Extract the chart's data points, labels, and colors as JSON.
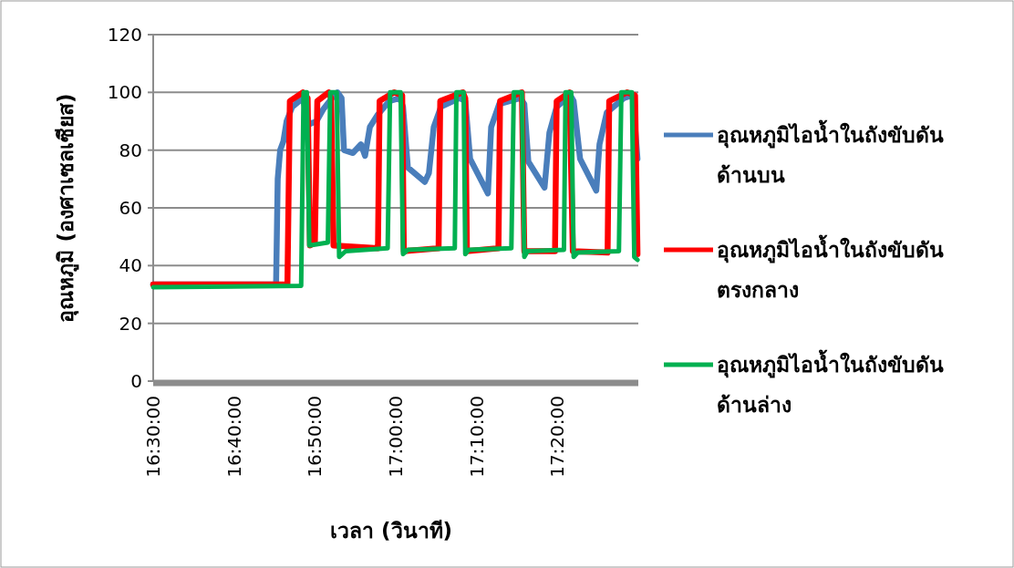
{
  "chart_data": {
    "type": "line",
    "xlabel": "เวลา (วินาที)",
    "ylabel": "อุณหภูมิ (องศาเซลเซียส)",
    "xlim": [
      16.5,
      17.5
    ],
    "ylim": [
      0,
      120
    ],
    "xticks": [
      {
        "value": 16.5,
        "label": "16:30:00"
      },
      {
        "value": 16.6667,
        "label": "16:40:00"
      },
      {
        "value": 16.8333,
        "label": "16:50:00"
      },
      {
        "value": 17,
        "label": "17:00:00"
      },
      {
        "value": 17.1667,
        "label": "17:10:00"
      },
      {
        "value": 17.3333,
        "label": "17:20:00"
      }
    ],
    "yticks": [
      0,
      20,
      40,
      60,
      80,
      100,
      120
    ],
    "grid": "y",
    "legend": "right",
    "marker": "none",
    "line_style": "solid",
    "series": [
      {
        "name": "อุณหภูมิไอน้ำในถังขับดันด้านบน",
        "color": "#4a7ebb",
        "x": [
          16.5,
          16.7533,
          16.7567,
          16.7617,
          16.7683,
          16.775,
          16.7867,
          16.8083,
          16.8167,
          16.8217,
          16.8367,
          16.85,
          16.8683,
          16.88,
          16.8883,
          16.8933,
          16.9117,
          16.9283,
          16.9367,
          16.9467,
          16.9617,
          16.9867,
          17.0083,
          17.015,
          17.025,
          17.06,
          17.0683,
          17.0783,
          17.0933,
          17.1317,
          17.1433,
          17.1533,
          17.19,
          17.1967,
          17.2133,
          17.2567,
          17.265,
          17.2733,
          17.3067,
          17.3167,
          17.3317,
          17.36,
          17.3667,
          17.38,
          17.4133,
          17.42,
          17.435,
          17.47,
          17.4883,
          17.4983
        ],
        "values": [
          33.5,
          33.5,
          70,
          80,
          83,
          90,
          95,
          98,
          92,
          89,
          90,
          94,
          98,
          100,
          98,
          80,
          79,
          82,
          78,
          88,
          92,
          97,
          98,
          95,
          74,
          69,
          72,
          88,
          95,
          98,
          97,
          77,
          65,
          88,
          96,
          98,
          96,
          76,
          67,
          86,
          95,
          99,
          97,
          77,
          66,
          82,
          93,
          98,
          99,
          77
        ]
      },
      {
        "name": "อุณหภูมิไอน้ำในถังขับดันตรงกลาง",
        "color": "#ff0000",
        "x": [
          16.5,
          16.7767,
          16.7817,
          16.8083,
          16.8183,
          16.8233,
          16.8333,
          16.8383,
          16.8617,
          16.8667,
          16.8717,
          16.9633,
          16.9667,
          16.9967,
          17.0133,
          17.0167,
          17.0883,
          17.0917,
          17.1383,
          17.1433,
          17.1467,
          17.2117,
          17.215,
          17.26,
          17.265,
          17.3283,
          17.3317,
          17.3583,
          17.365,
          17.4367,
          17.44,
          17.4767,
          17.4933,
          17.4983
        ],
        "values": [
          33.5,
          33.5,
          97,
          100,
          98,
          47,
          48,
          97,
          100,
          98,
          47,
          46,
          97,
          100,
          99,
          45,
          46,
          97,
          100,
          98,
          45,
          46,
          97,
          100,
          45,
          45,
          97,
          100,
          45,
          44.5,
          97,
          100,
          99,
          44
        ]
      },
      {
        "name": "อุณหภูมิไอน้ำในถังขับดันด้านล่าง",
        "color": "#00b050",
        "x": [
          16.5,
          16.805,
          16.81,
          16.8167,
          16.8217,
          16.86,
          16.865,
          16.8783,
          16.8833,
          16.8967,
          16.9833,
          16.9883,
          17.01,
          17.015,
          17.025,
          17.1217,
          17.125,
          17.14,
          17.1433,
          17.15,
          17.2383,
          17.2433,
          17.26,
          17.265,
          17.2717,
          17.3467,
          17.35,
          17.3617,
          17.3667,
          17.375,
          17.46,
          17.465,
          17.4867,
          17.4917,
          17.4983
        ],
        "values": [
          32.5,
          33,
          100,
          100,
          47,
          48,
          100,
          100,
          43,
          45,
          46,
          100,
          100,
          44,
          45.5,
          46,
          100,
          100,
          44,
          45.5,
          46,
          100,
          100,
          43,
          45,
          45.5,
          100,
          100,
          43,
          44.5,
          45,
          100,
          100,
          43,
          42
        ]
      }
    ]
  }
}
